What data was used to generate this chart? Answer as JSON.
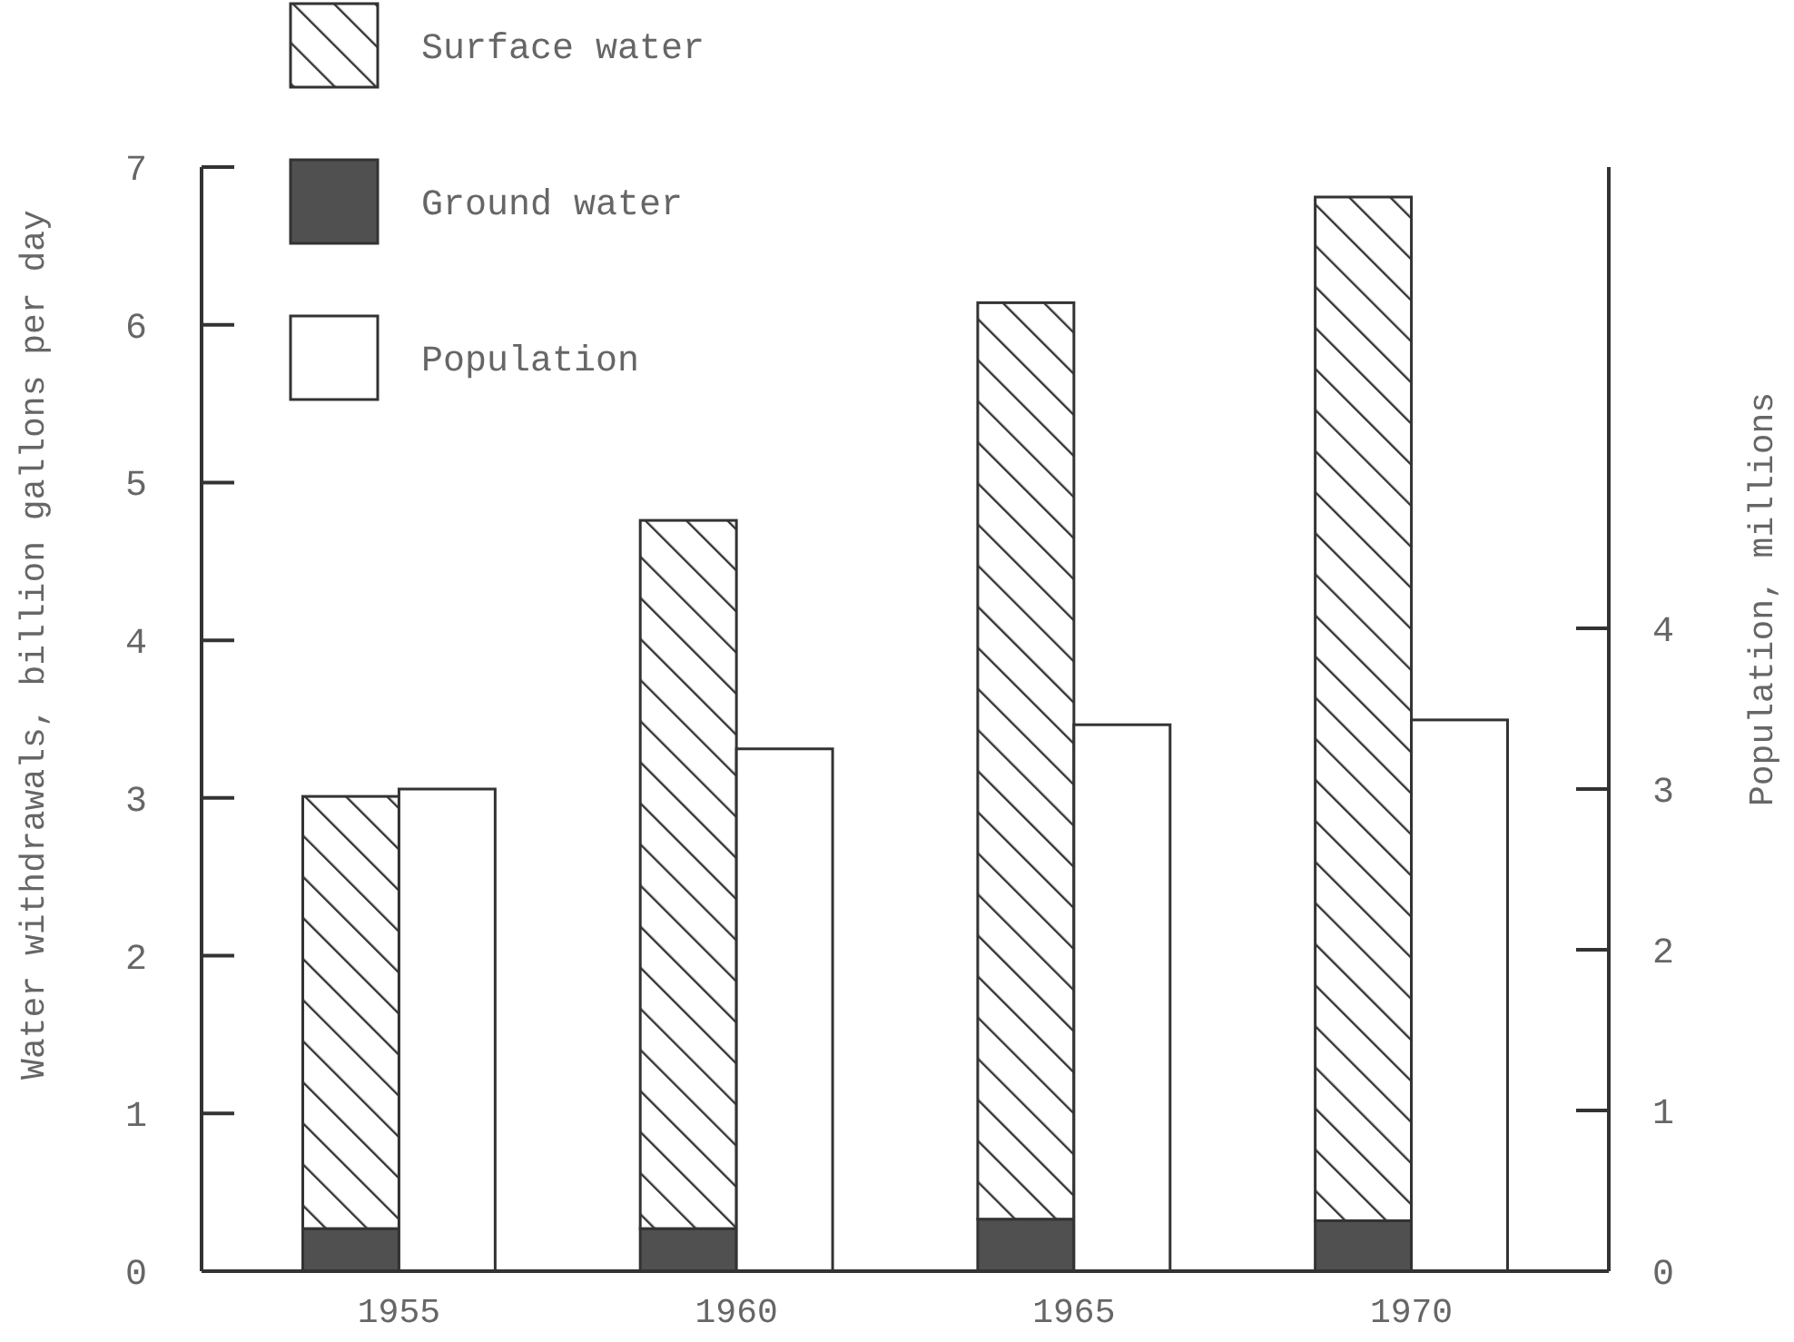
{
  "chart_data": {
    "type": "bar",
    "xlabel": null,
    "ylabel": "Water withdrawals, billion gallons per day",
    "y2label": "Population, millions",
    "categories": [
      "1955",
      "1960",
      "1965",
      "1970"
    ],
    "stacked": true,
    "series": [
      {
        "name": "Ground water",
        "color": "#505050",
        "values": [
          0.27,
          0.27,
          0.33,
          0.32
        ]
      },
      {
        "name": "Surface water",
        "color": "#333333",
        "values": [
          2.74,
          4.49,
          5.81,
          6.49
        ]
      },
      {
        "name": "Population",
        "color": "#ffffff",
        "axis": "y2",
        "values": [
          3.0,
          3.25,
          3.4,
          3.43
        ]
      }
    ],
    "ylim": [
      0,
      7
    ],
    "yticks": [
      0,
      1,
      2,
      3,
      4,
      5,
      6,
      7
    ],
    "y2lim": [
      0,
      6.87
    ],
    "y2ticks": [
      0,
      1,
      2,
      3,
      4
    ],
    "legend": "top left",
    "grid": false
  }
}
